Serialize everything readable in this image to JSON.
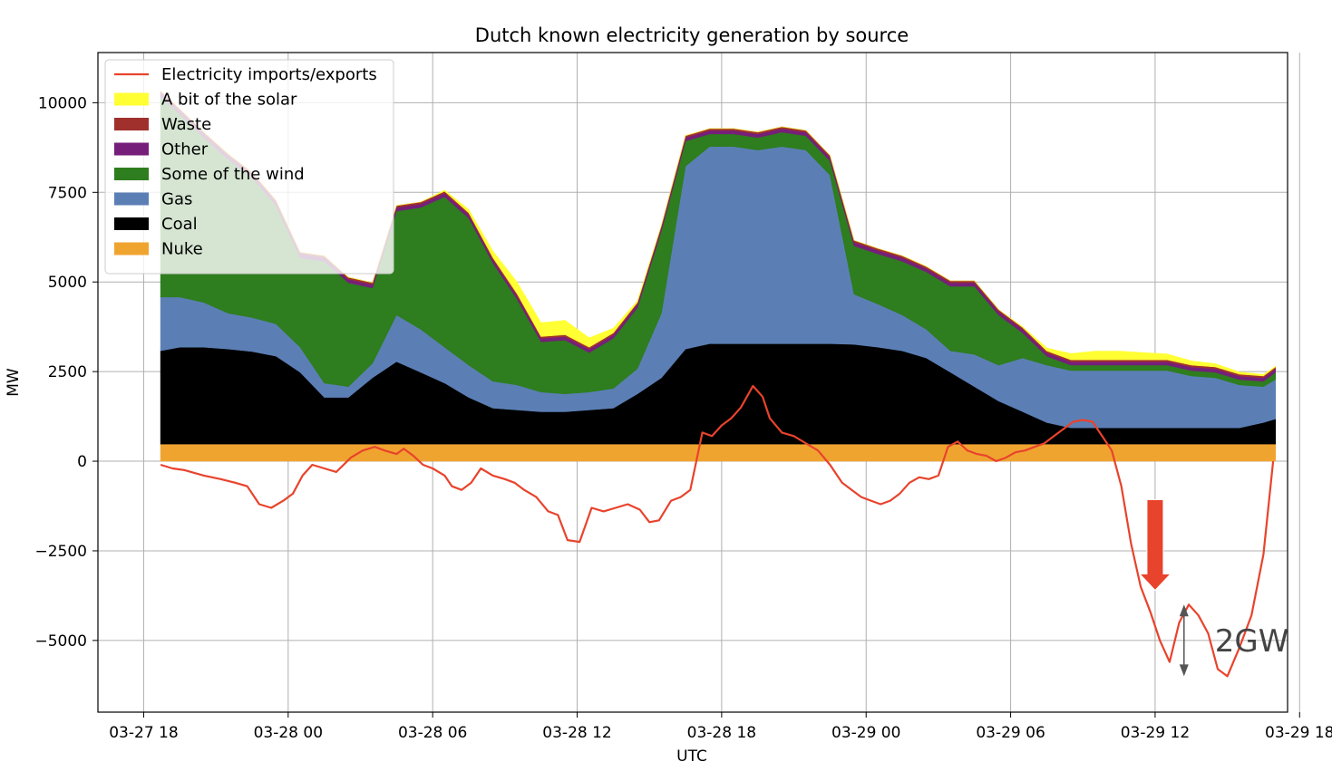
{
  "chart_data": {
    "type": "area",
    "title": "Dutch known electricity generation by source",
    "xlabel": "UTC",
    "ylabel": "MW",
    "ylim": [
      -7000,
      11400
    ],
    "xlim_hours": [
      -1.9,
      47.5
    ],
    "x_origin": "2024-03-27T18:00Z",
    "yticks": [
      10000,
      7500,
      5000,
      2500,
      0,
      -2500,
      -5000
    ],
    "ytick_labels": [
      "10000",
      "7500",
      "5000",
      "2500",
      "0",
      "−2500",
      "−5000"
    ],
    "xticks_hours": [
      0,
      6,
      12,
      18,
      24,
      30,
      36,
      42,
      48
    ],
    "xtick_labels": [
      "03-27 18",
      "03-28 00",
      "03-28 06",
      "03-28 12",
      "03-28 18",
      "03-29 00",
      "03-29 06",
      "03-29 12",
      "03-29 18"
    ],
    "grid": true,
    "legend_position": "upper-left",
    "x_hours": [
      0.7,
      1.5,
      2.5,
      3.5,
      4.5,
      5.5,
      6.5,
      7.5,
      8.5,
      9.5,
      10.5,
      11.5,
      12.5,
      13.5,
      14.5,
      15.5,
      16.5,
      17.5,
      18.5,
      19.5,
      20.5,
      21.5,
      22.5,
      23.5,
      24.5,
      25.5,
      26.5,
      27.5,
      28.5,
      29.5,
      30.5,
      31.5,
      32.5,
      33.5,
      34.5,
      35.5,
      36.5,
      37.5,
      38.5,
      39.5,
      40.5,
      41.5,
      42.5,
      43.5,
      44.5,
      45.5,
      46.5,
      47.0
    ],
    "stack_order": [
      "Nuke",
      "Coal",
      "Gas",
      "Some of the wind",
      "Other",
      "Waste",
      "A bit of the solar"
    ],
    "series": [
      {
        "name": "Nuke",
        "color": "#f0a430",
        "values": [
          480,
          480,
          480,
          480,
          480,
          480,
          480,
          480,
          480,
          480,
          480,
          480,
          480,
          480,
          480,
          480,
          480,
          480,
          480,
          480,
          480,
          480,
          480,
          480,
          480,
          480,
          480,
          480,
          480,
          480,
          480,
          480,
          480,
          480,
          480,
          480,
          480,
          480,
          480,
          480,
          480,
          480,
          480,
          480,
          480,
          480,
          480,
          480
        ]
      },
      {
        "name": "Coal",
        "color": "#000000",
        "values": [
          2600,
          2700,
          2700,
          2650,
          2580,
          2450,
          2000,
          1300,
          1300,
          1850,
          2300,
          2000,
          1700,
          1300,
          1000,
          950,
          900,
          900,
          950,
          1000,
          1400,
          1850,
          2650,
          2800,
          2800,
          2800,
          2800,
          2800,
          2800,
          2780,
          2700,
          2600,
          2400,
          2000,
          1600,
          1200,
          900,
          600,
          450,
          450,
          450,
          450,
          450,
          450,
          450,
          450,
          600,
          700
        ]
      },
      {
        "name": "Gas",
        "color": "#5b7fb5",
        "values": [
          1500,
          1400,
          1250,
          1000,
          950,
          900,
          700,
          400,
          300,
          400,
          1300,
          1200,
          1000,
          900,
          750,
          700,
          550,
          500,
          500,
          550,
          700,
          1800,
          5100,
          5500,
          5500,
          5400,
          5500,
          5400,
          4700,
          1400,
          1200,
          1000,
          800,
          600,
          900,
          1000,
          1500,
          1600,
          1600,
          1600,
          1600,
          1600,
          1600,
          1450,
          1400,
          1200,
          1000,
          1100
        ]
      },
      {
        "name": "Some of the wind",
        "color": "#2e7d1e",
        "values": [
          5600,
          5100,
          4600,
          4300,
          3900,
          3300,
          2500,
          3400,
          2900,
          2100,
          2900,
          3400,
          4200,
          4100,
          3300,
          2400,
          1400,
          1500,
          1100,
          1400,
          1700,
          2300,
          700,
          350,
          350,
          350,
          400,
          400,
          400,
          1350,
          1400,
          1500,
          1600,
          1800,
          1900,
          1400,
          700,
          250,
          150,
          150,
          150,
          150,
          150,
          150,
          150,
          150,
          150,
          200
        ]
      },
      {
        "name": "Other",
        "color": "#761f7a",
        "values": [
          100,
          100,
          100,
          100,
          100,
          100,
          100,
          100,
          100,
          100,
          100,
          100,
          100,
          100,
          100,
          100,
          100,
          100,
          100,
          100,
          100,
          100,
          100,
          100,
          100,
          100,
          100,
          100,
          100,
          100,
          100,
          100,
          100,
          100,
          100,
          100,
          100,
          100,
          100,
          100,
          100,
          100,
          100,
          100,
          100,
          100,
          100,
          100
        ]
      },
      {
        "name": "Waste",
        "color": "#a0302c",
        "values": [
          50,
          50,
          50,
          50,
          50,
          50,
          50,
          50,
          50,
          50,
          50,
          50,
          50,
          50,
          50,
          50,
          50,
          50,
          50,
          50,
          50,
          50,
          50,
          50,
          50,
          50,
          50,
          50,
          50,
          50,
          50,
          50,
          50,
          50,
          50,
          50,
          50,
          50,
          50,
          50,
          50,
          50,
          50,
          50,
          50,
          50,
          50,
          50
        ]
      },
      {
        "name": "A bit of the solar",
        "color": "#ffff33",
        "values": [
          0,
          0,
          0,
          0,
          0,
          0,
          0,
          0,
          0,
          0,
          0,
          0,
          30,
          90,
          180,
          320,
          380,
          400,
          260,
          130,
          40,
          0,
          0,
          0,
          0,
          0,
          0,
          0,
          0,
          0,
          0,
          0,
          0,
          0,
          0,
          0,
          20,
          80,
          170,
          240,
          240,
          200,
          160,
          120,
          90,
          60,
          40,
          20
        ]
      },
      {
        "name": "Electricity imports/exports",
        "type": "line",
        "color": "#e8432c",
        "x": [
          0.7,
          1.2,
          1.7,
          2.5,
          3.2,
          3.8,
          4.3,
          4.8,
          5.3,
          5.8,
          6.2,
          6.6,
          7.0,
          7.5,
          8.0,
          8.6,
          9.1,
          9.6,
          10.0,
          10.5,
          10.8,
          11.2,
          11.6,
          12.0,
          12.5,
          12.8,
          13.2,
          13.6,
          14.0,
          14.5,
          15.0,
          15.4,
          15.8,
          16.3,
          16.8,
          17.2,
          17.6,
          18.1,
          18.6,
          19.1,
          19.6,
          20.1,
          20.6,
          21.0,
          21.4,
          21.9,
          22.3,
          22.7,
          23.2,
          23.6,
          24.0,
          24.4,
          24.8,
          25.3,
          25.7,
          26.0,
          26.5,
          27.0,
          27.5,
          28.0,
          28.5,
          29.0,
          29.4,
          29.8,
          30.2,
          30.6,
          31.0,
          31.4,
          31.8,
          32.2,
          32.6,
          33.0,
          33.4,
          33.8,
          34.2,
          34.6,
          35.0,
          35.4,
          35.8,
          36.2,
          36.6,
          37.0,
          37.4,
          37.8,
          38.2,
          38.6,
          39.0,
          39.4,
          39.8,
          40.2,
          40.6,
          41.0,
          41.4,
          41.8,
          42.2,
          42.6,
          43.0,
          43.4,
          43.8,
          44.2,
          44.6,
          45.0,
          45.5,
          46.0,
          46.5,
          46.9
        ],
        "values": [
          -100,
          -200,
          -250,
          -400,
          -500,
          -600,
          -700,
          -1200,
          -1300,
          -1100,
          -900,
          -400,
          -100,
          -200,
          -300,
          100,
          300,
          400,
          300,
          200,
          350,
          150,
          -100,
          -200,
          -400,
          -700,
          -800,
          -600,
          -200,
          -400,
          -500,
          -600,
          -800,
          -1000,
          -1400,
          -1500,
          -2200,
          -2250,
          -1300,
          -1400,
          -1300,
          -1200,
          -1350,
          -1700,
          -1650,
          -1100,
          -1000,
          -800,
          800,
          700,
          1000,
          1200,
          1500,
          2100,
          1800,
          1200,
          800,
          700,
          500,
          300,
          -100,
          -600,
          -800,
          -1000,
          -1100,
          -1200,
          -1100,
          -900,
          -600,
          -450,
          -500,
          -400,
          400,
          550,
          300,
          200,
          150,
          0,
          100,
          250,
          300,
          400,
          500,
          700,
          900,
          1100,
          1150,
          1100,
          700,
          300,
          -700,
          -2300,
          -3500,
          -4200,
          -5000,
          -5600,
          -4500,
          -4000,
          -4300,
          -4800,
          -5800,
          -6000,
          -5200,
          -4300,
          -2600,
          0
        ]
      }
    ],
    "legend": [
      "Electricity imports/exports",
      "A bit of the solar",
      "Waste",
      "Other",
      "Some of the wind",
      "Gas",
      "Coal",
      "Nuke"
    ],
    "annotations": [
      {
        "type": "arrow",
        "color": "#e8432c",
        "at_hour": 42.0,
        "points_to_y": -3600
      },
      {
        "type": "double-arrow",
        "color": "#555555",
        "at_hour": 43.2,
        "y_from": -6000,
        "y_to": -4000,
        "label": "2GW"
      }
    ]
  }
}
